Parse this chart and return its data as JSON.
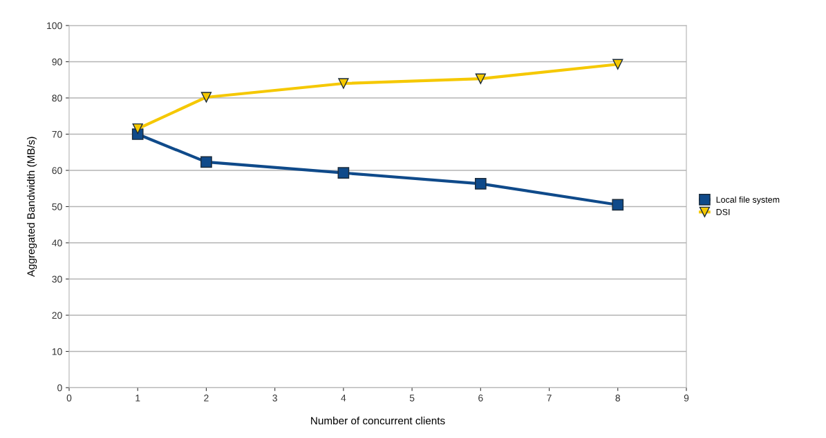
{
  "chart_data": {
    "type": "line",
    "xlabel": "Number of concurrent clients",
    "ylabel": "Aggregated Bandwidth (MB/s)",
    "xlim": [
      0,
      9
    ],
    "xticks": [
      0,
      1,
      2,
      3,
      4,
      5,
      6,
      7,
      8,
      9
    ],
    "ylim": [
      0,
      100
    ],
    "yticks": [
      0,
      10,
      20,
      30,
      40,
      50,
      60,
      70,
      80,
      90,
      100
    ],
    "grid": "y",
    "legend": "right",
    "series": [
      {
        "name": "Local file system",
        "color": "#0f4a8a",
        "marker": "square",
        "x": [
          1,
          2,
          4,
          6,
          8
        ],
        "values": [
          70,
          62.3,
          59.3,
          56.3,
          50.5
        ]
      },
      {
        "name": "DSI",
        "color": "#f5c800",
        "marker": "triangle",
        "x": [
          1,
          2,
          4,
          6,
          8
        ],
        "values": [
          71.5,
          80.2,
          84,
          85.3,
          89.3
        ]
      }
    ]
  }
}
